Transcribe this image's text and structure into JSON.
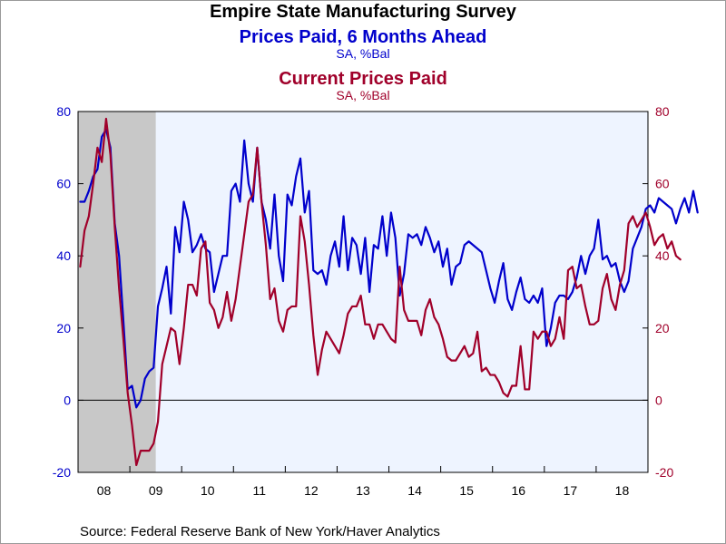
{
  "chart_data": {
    "type": "line",
    "title": "Empire State Manufacturing Survey",
    "series": [
      {
        "name": "Prices Paid, 6 Months Ahead",
        "units": "SA, %Bal",
        "color": "#0000cc",
        "axis": "left",
        "start": "2008-01",
        "frequency": "monthly",
        "values": [
          55,
          55,
          58,
          62,
          64,
          73,
          75,
          70,
          49,
          40,
          22,
          3,
          4,
          -2,
          0,
          6,
          8,
          9,
          26,
          31,
          37,
          24,
          48,
          41,
          55,
          50,
          41,
          43,
          46,
          42,
          41,
          30,
          35,
          40,
          40,
          58,
          60,
          55,
          72,
          60,
          55,
          70,
          55,
          50,
          42,
          57,
          40,
          33,
          57,
          54,
          62,
          67,
          52,
          58,
          36,
          35,
          36,
          32,
          40,
          44,
          37,
          51,
          36,
          45,
          43,
          35,
          45,
          30,
          43,
          42,
          51,
          40,
          52,
          45,
          29,
          35,
          46,
          45,
          46,
          43,
          48,
          45,
          41,
          44,
          37,
          42,
          32,
          37,
          38,
          43,
          44,
          43,
          42,
          41,
          36,
          31,
          27,
          33,
          38,
          28,
          25,
          30,
          34,
          28,
          27,
          29,
          27,
          31,
          15,
          20,
          27,
          29,
          29,
          28,
          30,
          34,
          40,
          35,
          40,
          42,
          50,
          39,
          40,
          37,
          38,
          33,
          30,
          33,
          42,
          45,
          48,
          53,
          54,
          52,
          56,
          55,
          54,
          53,
          49,
          53,
          56,
          52,
          58,
          52
        ],
        "legend_label": "Prices Paid, 6 Months Ahead"
      },
      {
        "name": "Current Prices Paid",
        "units": "SA, %Bal",
        "color": "#a0002a",
        "axis": "right",
        "start": "2008-01",
        "frequency": "monthly",
        "values": [
          37,
          47,
          51,
          60,
          70,
          66,
          78,
          68,
          48,
          31,
          17,
          2,
          -7,
          -18,
          -14,
          -14,
          -14,
          -12,
          -6,
          10,
          15,
          20,
          19,
          10,
          20,
          32,
          32,
          29,
          42,
          44,
          27,
          25,
          20,
          23,
          30,
          22,
          28,
          37,
          46,
          55,
          57,
          70,
          55,
          43,
          28,
          31,
          22,
          19,
          25,
          26,
          26,
          51,
          44,
          32,
          18,
          7,
          14,
          19,
          17,
          15,
          13,
          18,
          24,
          26,
          26,
          29,
          21,
          21,
          17,
          21,
          21,
          19,
          17,
          16,
          37,
          25,
          22,
          22,
          22,
          18,
          25,
          28,
          23,
          21,
          17,
          12,
          11,
          11,
          13,
          15,
          12,
          13,
          19,
          8,
          9,
          7,
          7,
          5,
          2,
          1,
          4,
          4,
          15,
          3,
          3,
          19,
          17,
          19,
          19,
          15,
          17,
          23,
          17,
          36,
          37,
          31,
          32,
          26,
          21,
          21,
          22,
          31,
          35,
          28,
          25,
          32,
          36,
          49,
          51,
          48,
          50,
          52,
          48,
          43,
          45,
          46,
          42,
          44,
          40,
          39
        ]
      }
    ],
    "x_axis": {
      "start": "2008-01",
      "end": "2018-12",
      "tick_labels": [
        "08",
        "09",
        "10",
        "11",
        "12",
        "13",
        "14",
        "15",
        "16",
        "17",
        "18"
      ]
    },
    "y_left": {
      "min": -20,
      "max": 80,
      "ticks": [
        80,
        60,
        40,
        20,
        0,
        "-20"
      ],
      "color": "#0000cc"
    },
    "y_right": {
      "min": -20,
      "max": 80,
      "ticks": [
        80,
        60,
        40,
        20,
        0,
        "-20"
      ],
      "color": "#a0002a"
    },
    "recession": {
      "start": "2008-01",
      "end": "2009-06",
      "color": "#c8c8c8"
    },
    "plot_background": "#eef4ff",
    "zero_line": true
  },
  "titles": {
    "main": "Empire State Manufacturing Survey",
    "series1": "Prices Paid, 6 Months Ahead",
    "series1_units": "SA, %Bal",
    "series2": "Current Prices Paid",
    "series2_units": "SA, %Bal"
  },
  "source": "Source:  Federal Reserve Bank of New York/Haver Analytics"
}
